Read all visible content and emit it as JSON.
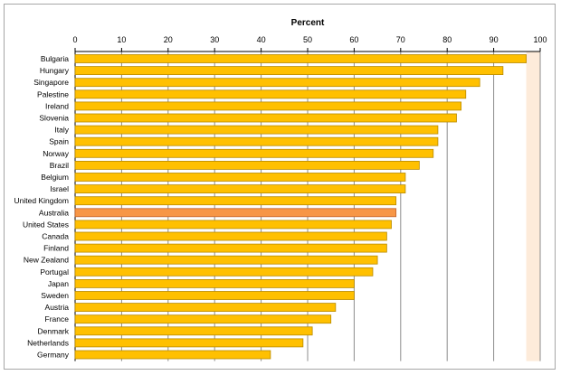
{
  "chart_data": {
    "type": "bar",
    "orientation": "horizontal",
    "title": "Percent",
    "xlim": [
      0,
      100
    ],
    "x_ticks": [
      "0",
      "10",
      "20",
      "30",
      "40",
      "50",
      "60",
      "70",
      "80",
      "90",
      "100"
    ],
    "categories": [
      "Bulgaria",
      "Hungary",
      "Singapore",
      "Palestine",
      "Ireland",
      "Slovenia",
      "Italy",
      "Spain",
      "Norway",
      "Brazil",
      "Belgium",
      "Israel",
      "United Kingdom",
      "Australia",
      "United States",
      "Canada",
      "Finland",
      "New Zealand",
      "Portugal",
      "Japan",
      "Sweden",
      "Austria",
      "France",
      "Denmark",
      "Netherlands",
      "Germany"
    ],
    "values": [
      97,
      92,
      87,
      84,
      83,
      82,
      78,
      78,
      77,
      74,
      71,
      71,
      69,
      69,
      68,
      67,
      67,
      65,
      64,
      60,
      60,
      56,
      55,
      51,
      49,
      42
    ],
    "highlight": "Australia",
    "grid": true,
    "colors": {
      "bar": "#FFC000",
      "bar_edge": "#B88A00",
      "highlight": "#F79646",
      "highlight_edge": "#C0602A",
      "plot_bg_shade": "#FDEBDA",
      "grid": "#8C8C8C"
    }
  }
}
